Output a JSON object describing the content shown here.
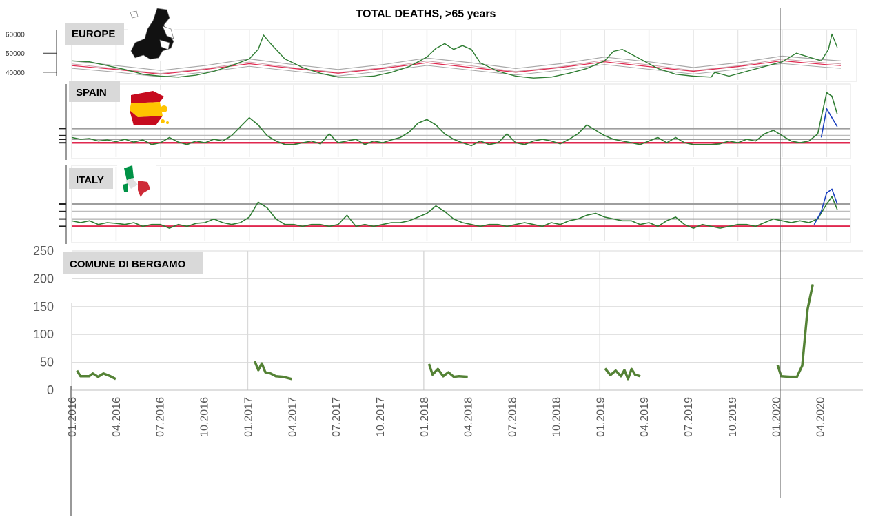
{
  "title": "TOTAL DEATHS, >65 years",
  "colors": {
    "observed": "#2e7d32",
    "baseline": "#e0284f",
    "threshold": "#9e9e9e",
    "corrected": "#1a3fbf",
    "bergamo": "#548235",
    "grid": "#d9d9d9"
  },
  "chart_data": [
    {
      "type": "line",
      "name": "europe",
      "label": "EUROPE",
      "y_ticks": [
        "60000",
        "50000",
        "40000"
      ],
      "ylim": [
        36000,
        62000
      ],
      "x_range": [
        2016.0,
        2020.33
      ],
      "series": [
        {
          "role": "observed",
          "x": [
            2016.0,
            2016.1,
            2016.2,
            2016.3,
            2016.4,
            2016.5,
            2016.6,
            2016.7,
            2016.8,
            2016.9,
            2017.0,
            2017.05,
            2017.08,
            2017.12,
            2017.2,
            2017.3,
            2017.4,
            2017.5,
            2017.6,
            2017.7,
            2017.8,
            2017.9,
            2018.0,
            2018.05,
            2018.1,
            2018.15,
            2018.2,
            2018.25,
            2018.3,
            2018.4,
            2018.5,
            2018.6,
            2018.7,
            2018.8,
            2018.9,
            2019.0,
            2019.05,
            2019.1,
            2019.2,
            2019.3,
            2019.4,
            2019.5,
            2019.6,
            2019.62,
            2019.7,
            2019.8,
            2019.9,
            2020.0,
            2020.08,
            2020.15,
            2020.22,
            2020.26,
            2020.28,
            2020.31
          ],
          "values": [
            46000,
            45500,
            43500,
            41500,
            39000,
            38000,
            37500,
            38500,
            40500,
            43500,
            47000,
            52000,
            59500,
            55000,
            47000,
            42500,
            39500,
            37500,
            37500,
            38000,
            40000,
            43000,
            48000,
            52500,
            55000,
            52000,
            54000,
            52000,
            45000,
            40500,
            38000,
            37000,
            37500,
            39500,
            42000,
            46000,
            51000,
            52000,
            47000,
            42000,
            39000,
            38000,
            37500,
            40000,
            38000,
            40500,
            43000,
            45500,
            50000,
            48000,
            46000,
            52000,
            60000,
            53000
          ]
        },
        {
          "role": "baseline",
          "x": [
            2016.0,
            2016.25,
            2016.5,
            2016.75,
            2017.0,
            2017.25,
            2017.5,
            2017.75,
            2018.0,
            2018.25,
            2018.5,
            2018.75,
            2019.0,
            2019.25,
            2019.5,
            2019.75,
            2020.0,
            2020.25,
            2020.33
          ],
          "values": [
            43500,
            41500,
            39000,
            41500,
            44500,
            42000,
            39500,
            42000,
            45000,
            42500,
            40000,
            42500,
            45500,
            43000,
            40500,
            43000,
            46000,
            44000,
            43500
          ]
        },
        {
          "role": "threshold",
          "x": [
            2016.0,
            2016.25,
            2016.5,
            2016.75,
            2017.0,
            2017.25,
            2017.5,
            2017.75,
            2018.0,
            2018.25,
            2018.5,
            2018.75,
            2019.0,
            2019.25,
            2019.5,
            2019.75,
            2020.0,
            2020.25,
            2020.33
          ],
          "values": [
            46000,
            43500,
            41000,
            43500,
            47000,
            44000,
            41500,
            44000,
            47500,
            45000,
            42000,
            44500,
            48000,
            45500,
            42500,
            45000,
            48500,
            46500,
            46000
          ]
        }
      ]
    },
    {
      "type": "line",
      "name": "spain",
      "label": "SPAIN",
      "ylim": [
        -4,
        16
      ],
      "x_range": [
        2016.0,
        2020.33
      ],
      "series": [
        {
          "role": "observed",
          "x": [
            2016.0,
            2016.05,
            2016.1,
            2016.15,
            2016.2,
            2016.25,
            2016.3,
            2016.35,
            2016.4,
            2016.45,
            2016.5,
            2016.55,
            2016.6,
            2016.65,
            2016.7,
            2016.75,
            2016.8,
            2016.85,
            2016.9,
            2016.95,
            2017.0,
            2017.05,
            2017.1,
            2017.15,
            2017.2,
            2017.25,
            2017.3,
            2017.35,
            2017.4,
            2017.45,
            2017.5,
            2017.55,
            2017.6,
            2017.65,
            2017.7,
            2017.75,
            2017.8,
            2017.85,
            2017.9,
            2017.95,
            2018.0,
            2018.05,
            2018.1,
            2018.15,
            2018.2,
            2018.25,
            2018.3,
            2018.35,
            2018.4,
            2018.45,
            2018.5,
            2018.55,
            2018.6,
            2018.65,
            2018.7,
            2018.75,
            2018.8,
            2018.85,
            2018.9,
            2018.95,
            2019.0,
            2019.05,
            2019.1,
            2019.15,
            2019.2,
            2019.25,
            2019.3,
            2019.35,
            2019.4,
            2019.45,
            2019.5,
            2019.55,
            2019.6,
            2019.65,
            2019.7,
            2019.75,
            2019.8,
            2019.85,
            2019.9,
            2019.95,
            2020.0,
            2020.05,
            2020.1,
            2020.15,
            2020.2,
            2020.25,
            2020.28,
            2020.31
          ],
          "values": [
            1.5,
            1.0,
            1.2,
            0.5,
            0.8,
            0.3,
            1.0,
            0.2,
            0.8,
            -0.5,
            0.0,
            1.5,
            0.2,
            -0.5,
            0.5,
            0.0,
            1.0,
            0.5,
            2.0,
            4.5,
            7.0,
            5.0,
            2.0,
            0.5,
            -0.5,
            -0.5,
            0.0,
            0.5,
            -0.3,
            2.5,
            0.0,
            0.5,
            1.0,
            -0.5,
            0.5,
            0.0,
            0.8,
            1.5,
            3.0,
            5.5,
            6.5,
            5.0,
            2.5,
            1.0,
            0.0,
            -0.8,
            0.5,
            -0.5,
            0.0,
            2.5,
            0.0,
            -0.5,
            0.5,
            1.0,
            0.5,
            -0.3,
            1.0,
            2.5,
            5.0,
            3.5,
            2.0,
            1.0,
            0.5,
            0.0,
            -0.5,
            0.5,
            1.5,
            0.0,
            1.5,
            0.0,
            -0.5,
            -0.5,
            -0.5,
            -0.3,
            0.5,
            0.0,
            1.0,
            0.5,
            2.5,
            3.5,
            2.0,
            0.5,
            0.0,
            0.5,
            2.5,
            14.0,
            13.0,
            8.0
          ]
        },
        {
          "role": "corrected",
          "x": [
            2020.22,
            2020.25,
            2020.28,
            2020.31
          ],
          "values": [
            1.5,
            9.5,
            7.0,
            4.5
          ]
        }
      ]
    },
    {
      "type": "line",
      "name": "italy",
      "label": "ITALY",
      "ylim": [
        -4,
        16
      ],
      "x_range": [
        2016.0,
        2020.33
      ],
      "series": [
        {
          "role": "observed",
          "x": [
            2016.0,
            2016.05,
            2016.1,
            2016.15,
            2016.2,
            2016.25,
            2016.3,
            2016.35,
            2016.4,
            2016.45,
            2016.5,
            2016.55,
            2016.6,
            2016.65,
            2016.7,
            2016.75,
            2016.8,
            2016.85,
            2016.9,
            2016.95,
            2017.0,
            2017.05,
            2017.1,
            2017.15,
            2017.2,
            2017.25,
            2017.3,
            2017.35,
            2017.4,
            2017.45,
            2017.5,
            2017.55,
            2017.6,
            2017.65,
            2017.7,
            2017.75,
            2017.8,
            2017.85,
            2017.9,
            2017.95,
            2018.0,
            2018.05,
            2018.1,
            2018.15,
            2018.2,
            2018.25,
            2018.3,
            2018.35,
            2018.4,
            2018.45,
            2018.5,
            2018.55,
            2018.6,
            2018.65,
            2018.7,
            2018.75,
            2018.8,
            2018.85,
            2018.9,
            2018.95,
            2019.0,
            2019.05,
            2019.1,
            2019.15,
            2019.2,
            2019.25,
            2019.3,
            2019.35,
            2019.4,
            2019.45,
            2019.5,
            2019.55,
            2019.6,
            2019.65,
            2019.7,
            2019.75,
            2019.8,
            2019.85,
            2019.9,
            2019.95,
            2020.0,
            2020.05,
            2020.1,
            2020.15,
            2020.2,
            2020.25,
            2020.28,
            2020.31
          ],
          "values": [
            1.5,
            1.0,
            1.5,
            0.5,
            1.0,
            0.8,
            0.5,
            1.0,
            0.0,
            0.5,
            0.5,
            -0.5,
            0.5,
            0.0,
            0.8,
            1.0,
            2.0,
            1.0,
            0.5,
            1.0,
            2.5,
            6.5,
            5.0,
            2.0,
            0.5,
            0.5,
            0.0,
            0.5,
            0.5,
            0.0,
            0.5,
            3.0,
            0.0,
            0.5,
            0.0,
            0.5,
            1.0,
            1.0,
            1.5,
            2.5,
            3.5,
            5.5,
            4.0,
            2.0,
            1.0,
            0.5,
            0.0,
            0.5,
            0.5,
            0.0,
            0.5,
            1.0,
            0.5,
            0.0,
            1.0,
            0.5,
            1.5,
            2.0,
            3.0,
            3.5,
            2.5,
            2.0,
            1.5,
            1.5,
            0.5,
            1.0,
            0.0,
            1.5,
            2.5,
            0.5,
            -0.5,
            0.5,
            0.0,
            -0.5,
            0.0,
            0.5,
            0.5,
            0.0,
            1.0,
            2.0,
            1.5,
            1.0,
            1.5,
            1.0,
            2.0,
            6.0,
            8.0,
            4.5
          ]
        },
        {
          "role": "corrected",
          "x": [
            2020.18,
            2020.22,
            2020.25,
            2020.28,
            2020.31
          ],
          "values": [
            0.5,
            4.0,
            9.0,
            10.0,
            6.0
          ]
        }
      ]
    },
    {
      "type": "line",
      "name": "bergamo",
      "label": "COMUNE DI BERGAMO",
      "y_ticks": [
        0,
        50,
        100,
        150,
        200,
        250
      ],
      "ylim": [
        0,
        250
      ],
      "x_tick_labels": [
        "01.2016",
        "04.2016",
        "07.2016",
        "10.2016",
        "01.2017",
        "04.2017",
        "07.2017",
        "10.2017",
        "01.2018",
        "04.2018",
        "07.2018",
        "10.2018",
        "01.2019",
        "04.2019",
        "07.2019",
        "10.2019",
        "01.2020",
        "04.2020"
      ],
      "x_range": [
        2016.0,
        2020.33
      ],
      "segments": [
        {
          "x": [
            2016.03,
            2016.05,
            2016.1,
            2016.12,
            2016.15,
            2016.18,
            2016.22,
            2016.25
          ],
          "values": [
            35,
            25,
            25,
            30,
            24,
            30,
            25,
            20
          ]
        },
        {
          "x": [
            2017.04,
            2017.06,
            2017.08,
            2017.1,
            2017.13,
            2017.16,
            2017.2,
            2017.25
          ],
          "values": [
            52,
            36,
            48,
            32,
            30,
            25,
            24,
            20
          ]
        },
        {
          "x": [
            2018.03,
            2018.05,
            2018.08,
            2018.11,
            2018.14,
            2018.17,
            2018.2,
            2018.25
          ],
          "values": [
            47,
            28,
            38,
            25,
            32,
            24,
            25,
            24
          ]
        },
        {
          "x": [
            2019.03,
            2019.06,
            2019.09,
            2019.12,
            2019.14,
            2019.16,
            2019.18,
            2019.2,
            2019.23
          ],
          "values": [
            39,
            27,
            35,
            25,
            36,
            20,
            38,
            28,
            25
          ]
        },
        {
          "x": [
            2020.01,
            2020.03,
            2020.08,
            2020.12,
            2020.15,
            2020.18,
            2020.21
          ],
          "values": [
            45,
            25,
            24,
            24,
            44,
            145,
            190
          ]
        }
      ]
    }
  ]
}
